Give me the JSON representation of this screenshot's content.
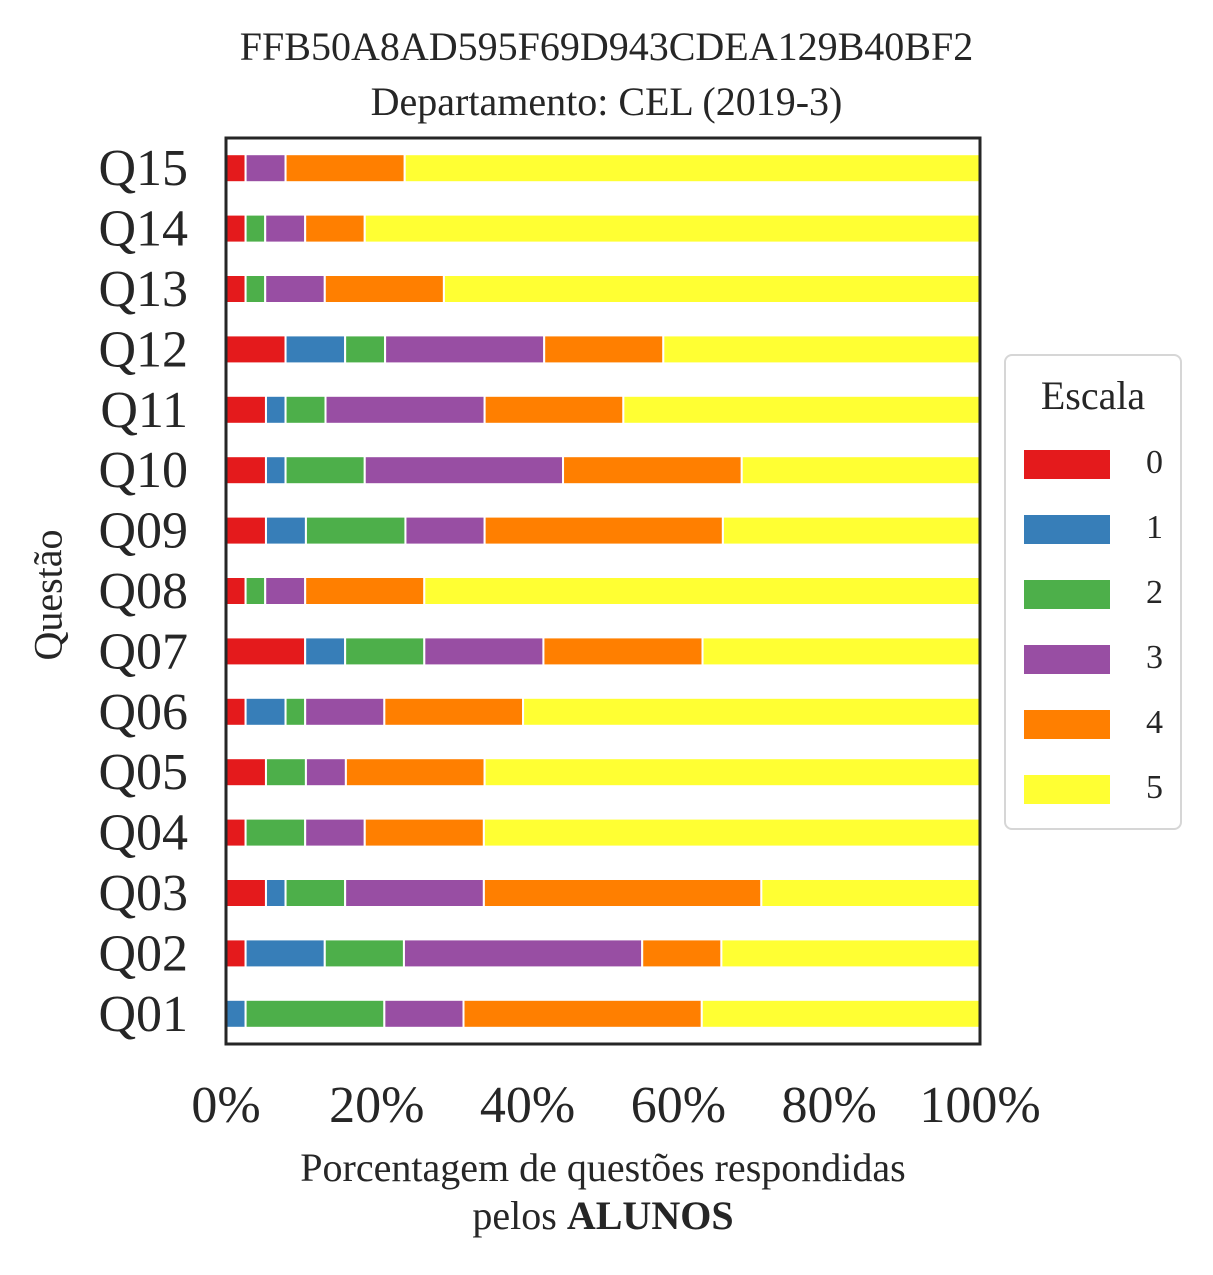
{
  "chart_data": {
    "type": "bar",
    "orientation": "horizontal",
    "stacked": true,
    "title": "FFB50A8AD595F69D943CDEA129B40BF2",
    "subtitle": "Departamento: CEL (2019-3)",
    "xlabel_line1": "Porcentagem de questões respondidas",
    "xlabel_line2_prefix": "pelos ",
    "xlabel_line2_bold": "ALUNOS",
    "ylabel": "Questão",
    "xlim": [
      0,
      100
    ],
    "xticks": [
      "0%",
      "20%",
      "40%",
      "60%",
      "80%",
      "100%"
    ],
    "grid": false,
    "legend_position": "right",
    "legend_title": "Escala",
    "categories": [
      "Q01",
      "Q02",
      "Q03",
      "Q04",
      "Q05",
      "Q06",
      "Q07",
      "Q08",
      "Q09",
      "Q10",
      "Q11",
      "Q12",
      "Q13",
      "Q14",
      "Q15"
    ],
    "series": [
      {
        "name": "0",
        "color": "#e41a1c",
        "values": [
          0,
          2.6,
          5.3,
          2.6,
          5.3,
          2.6,
          10.5,
          2.6,
          5.3,
          5.3,
          5.3,
          7.9,
          2.6,
          2.6,
          2.6
        ]
      },
      {
        "name": "1",
        "color": "#377eb8",
        "values": [
          2.6,
          10.5,
          2.6,
          0,
          0,
          5.3,
          5.3,
          0,
          5.3,
          2.6,
          2.6,
          7.9,
          0,
          0,
          0
        ]
      },
      {
        "name": "2",
        "color": "#4daf4a",
        "values": [
          18.4,
          10.5,
          7.9,
          7.9,
          5.3,
          2.6,
          10.5,
          2.6,
          13.2,
          10.5,
          5.3,
          5.3,
          2.6,
          2.6,
          0
        ]
      },
      {
        "name": "3",
        "color": "#984ea3",
        "values": [
          10.5,
          31.6,
          18.4,
          7.9,
          5.3,
          10.5,
          15.8,
          5.3,
          10.5,
          26.3,
          21.1,
          21.1,
          7.9,
          5.3,
          5.3
        ]
      },
      {
        "name": "4",
        "color": "#ff7f00",
        "values": [
          31.6,
          10.5,
          36.8,
          15.8,
          18.4,
          18.4,
          21.1,
          15.8,
          31.6,
          23.7,
          18.4,
          15.8,
          15.8,
          7.9,
          15.8
        ]
      },
      {
        "name": "5",
        "color": "#ffff33",
        "values": [
          36.9,
          34.3,
          29.0,
          65.8,
          65.7,
          60.6,
          36.8,
          73.7,
          34.1,
          31.6,
          47.3,
          42.0,
          71.1,
          81.6,
          76.3
        ]
      }
    ]
  }
}
